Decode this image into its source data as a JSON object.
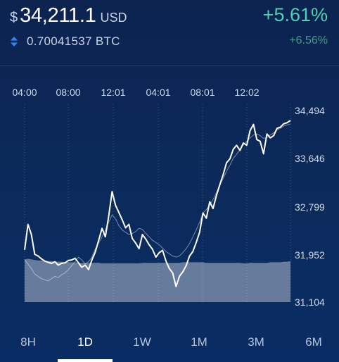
{
  "header": {
    "currency_symbol": "$",
    "price": "34,211.1",
    "currency": "USD",
    "change_percent": "+5.61%",
    "btc_amount": "0.70041537 BTC",
    "btc_change_percent": "+6.56%"
  },
  "colors": {
    "positive": "#4fd1b0",
    "positive_muted": "#3f9e86",
    "background": "#0b2b5c",
    "line": "#ffffff"
  },
  "icons": {
    "swap": "swap-vertical-icon"
  },
  "time_ranges": {
    "items": [
      "8H",
      "1D",
      "1W",
      "1M",
      "3M",
      "6M"
    ],
    "selected": "1D"
  },
  "chart_data": {
    "type": "line",
    "x_tick_labels": [
      "04:00",
      "08:00",
      "12:01",
      "04:01",
      "08:01",
      "12:02"
    ],
    "y_tick_labels": [
      "34,494",
      "33,646",
      "32,799",
      "31,952",
      "31,104"
    ],
    "ylim": [
      31104,
      34494
    ],
    "grid": "dashed vertical",
    "series": [
      {
        "values": [
          32030,
          32480,
          32300,
          31950,
          31920,
          31870,
          31830,
          31810,
          31790,
          31820,
          31760,
          31790,
          31800,
          31840,
          31850,
          31880,
          31800,
          31720,
          31760,
          31680,
          31850,
          31990,
          32200,
          32410,
          32260,
          32630,
          33060,
          32820,
          32690,
          32560,
          32420,
          32480,
          32230,
          32150,
          32050,
          32300,
          32220,
          32120,
          32040,
          31900,
          31980,
          32020,
          31830,
          31700,
          31620,
          31380,
          31560,
          31640,
          31750,
          31920,
          32000,
          32160,
          32340,
          32680,
          32590,
          32880,
          32760,
          32990,
          33180,
          33360,
          33570,
          33640,
          33810,
          33880,
          33790,
          33920,
          33880,
          34140,
          34250,
          33980,
          33950,
          33730,
          34080,
          34010,
          34050,
          34180,
          34200,
          34260,
          34280,
          34320
        ]
      },
      {
        "values": [
          31850,
          31780,
          31700,
          31600,
          31560,
          31520,
          31500,
          31480,
          31520,
          31560,
          31540,
          31590,
          31620,
          31680,
          31750,
          31820,
          31900,
          31850,
          31780,
          31820,
          31900,
          32050,
          32150,
          32260,
          32380,
          32520,
          32650,
          32580,
          32460,
          32380,
          32340,
          32300,
          32320,
          32350,
          32410,
          32390,
          32320,
          32260,
          32200,
          32160,
          32120,
          32060,
          32000,
          31960,
          31920,
          31900,
          31920,
          31980,
          32050,
          32140,
          32260,
          32380,
          32520,
          32680,
          32740,
          32820,
          32920,
          33040,
          33180,
          33290,
          33420,
          33530,
          33650,
          33720,
          33800,
          33890,
          33950,
          34010,
          34060,
          34080,
          34050,
          34000,
          34020,
          34060,
          34100,
          34150,
          34180,
          34220,
          34240,
          34260
        ]
      },
      {
        "type": "area",
        "values": [
          31860,
          31870,
          31860,
          31850,
          31840,
          31840,
          31830,
          31830,
          31830,
          31820,
          31820,
          31820,
          31810,
          31810,
          31810,
          31810,
          31800,
          31800,
          31800,
          31800,
          31800,
          31800,
          31800,
          31790,
          31790,
          31790,
          31790,
          31790,
          31790,
          31790,
          31790,
          31790,
          31790,
          31790,
          31790,
          31800,
          31800,
          31800,
          31800,
          31800,
          31800,
          31800,
          31800,
          31800,
          31800,
          31800,
          31800,
          31810,
          31810,
          31810,
          31810,
          31810,
          31810,
          31810,
          31800,
          31800,
          31800,
          31800,
          31800,
          31800,
          31800,
          31800,
          31800,
          31800,
          31800,
          31790,
          31790,
          31800,
          31800,
          31800,
          31800,
          31800,
          31800,
          31810,
          31810,
          31810,
          31810,
          31820,
          31820,
          31830
        ]
      }
    ]
  }
}
